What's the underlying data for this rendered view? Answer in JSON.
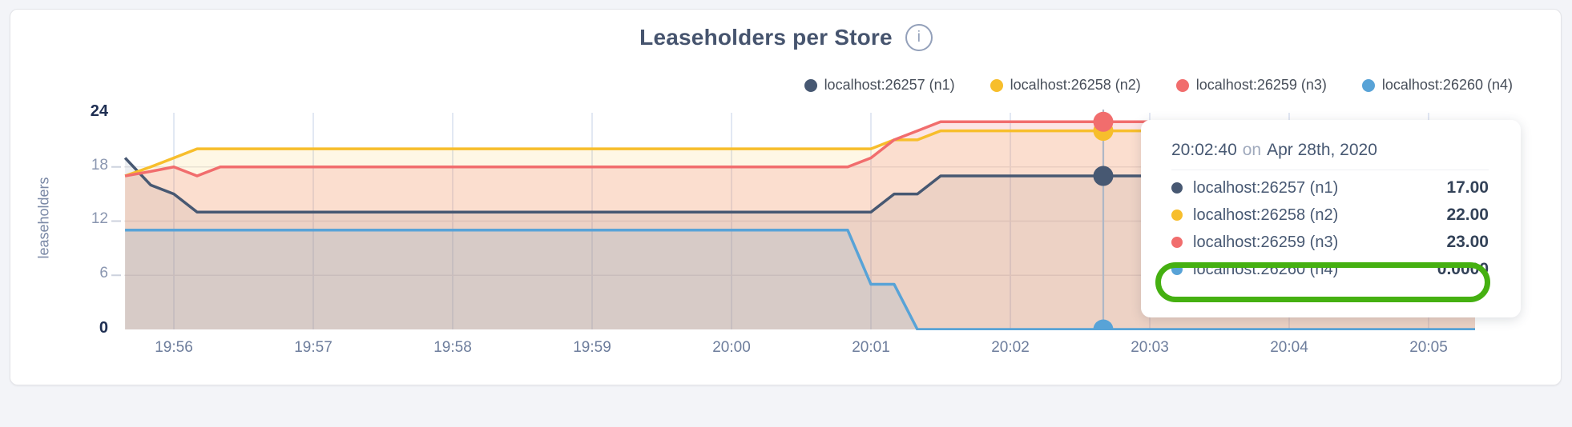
{
  "header": {
    "title": "Leaseholders per Store",
    "info_glyph": "i"
  },
  "legend": {
    "items": [
      {
        "label": "localhost:26257 (n1)",
        "color": "#475872"
      },
      {
        "label": "localhost:26258 (n2)",
        "color": "#f7be2c"
      },
      {
        "label": "localhost:26259 (n3)",
        "color": "#f16d6d"
      },
      {
        "label": "localhost:26260 (n4)",
        "color": "#58a3d7"
      }
    ]
  },
  "chart_data": {
    "type": "area",
    "title": "Leaseholders per Store",
    "ylabel": "leaseholders",
    "xlabel": "",
    "ylim": [
      0,
      24
    ],
    "grid": true,
    "legend_position": "top-right",
    "x_ticks": [
      "19:56",
      "19:57",
      "19:58",
      "19:59",
      "20:00",
      "20:01",
      "20:02",
      "20:03",
      "20:04",
      "20:05"
    ],
    "y_ticks": [
      {
        "value": 24,
        "label": "24",
        "emphasis": true
      },
      {
        "value": 18,
        "label": "18",
        "emphasis": false
      },
      {
        "value": 12,
        "label": "12",
        "emphasis": false
      },
      {
        "value": 6,
        "label": "6",
        "emphasis": false
      },
      {
        "value": 0,
        "label": "0",
        "emphasis": true
      }
    ],
    "x_range": [
      "19:55:39",
      "20:05:20"
    ],
    "series": [
      {
        "name": "localhost:26257 (n1)",
        "color": "#475872",
        "fill": "rgba(71,88,114,0.10)",
        "points": [
          [
            "19:55:39",
            19
          ],
          [
            "19:55:50",
            16
          ],
          [
            "19:56:00",
            15
          ],
          [
            "19:56:10",
            13
          ],
          [
            "20:01:00",
            13
          ],
          [
            "20:01:10",
            15
          ],
          [
            "20:01:20",
            15
          ],
          [
            "20:01:30",
            17
          ],
          [
            "20:05:20",
            17
          ]
        ]
      },
      {
        "name": "localhost:26258 (n2)",
        "color": "#f7be2c",
        "fill": "rgba(247,190,44,0.12)",
        "points": [
          [
            "19:55:39",
            17
          ],
          [
            "19:55:50",
            18
          ],
          [
            "19:56:00",
            19
          ],
          [
            "19:56:10",
            20
          ],
          [
            "20:01:00",
            20
          ],
          [
            "20:01:10",
            21
          ],
          [
            "20:01:20",
            21
          ],
          [
            "20:01:30",
            22
          ],
          [
            "20:05:20",
            22
          ]
        ]
      },
      {
        "name": "localhost:26259 (n3)",
        "color": "#f16d6d",
        "fill": "rgba(241,109,109,0.18)",
        "points": [
          [
            "19:55:39",
            17
          ],
          [
            "19:55:50",
            17.5
          ],
          [
            "19:56:00",
            18
          ],
          [
            "19:56:10",
            17
          ],
          [
            "19:56:20",
            18
          ],
          [
            "20:00:50",
            18
          ],
          [
            "20:01:00",
            19
          ],
          [
            "20:01:10",
            21
          ],
          [
            "20:01:20",
            22
          ],
          [
            "20:01:30",
            23
          ],
          [
            "20:05:20",
            23
          ]
        ]
      },
      {
        "name": "localhost:26260 (n4)",
        "color": "#58a3d7",
        "fill": "rgba(88,163,215,0.14)",
        "points": [
          [
            "19:55:39",
            11
          ],
          [
            "20:00:50",
            11
          ],
          [
            "20:01:00",
            5
          ],
          [
            "20:01:10",
            5
          ],
          [
            "20:01:20",
            0
          ],
          [
            "20:05:20",
            0
          ]
        ]
      }
    ],
    "hover": {
      "time": "20:02:40",
      "values": [
        17,
        22,
        23,
        0
      ]
    }
  },
  "tooltip": {
    "time": "20:02:40",
    "on_word": "on",
    "date": "Apr 28th, 2020",
    "rows": [
      {
        "label": "localhost:26257 (n1)",
        "value": "17.00",
        "color": "#475872",
        "highlighted": false
      },
      {
        "label": "localhost:26258 (n2)",
        "value": "22.00",
        "color": "#f7be2c",
        "highlighted": false
      },
      {
        "label": "localhost:26259 (n3)",
        "value": "23.00",
        "color": "#f16d6d",
        "highlighted": false
      },
      {
        "label": "localhost:26260 (n4)",
        "value": "0.0000",
        "color": "#58a3d7",
        "highlighted": true
      }
    ],
    "highlight_color": "#45b011"
  }
}
